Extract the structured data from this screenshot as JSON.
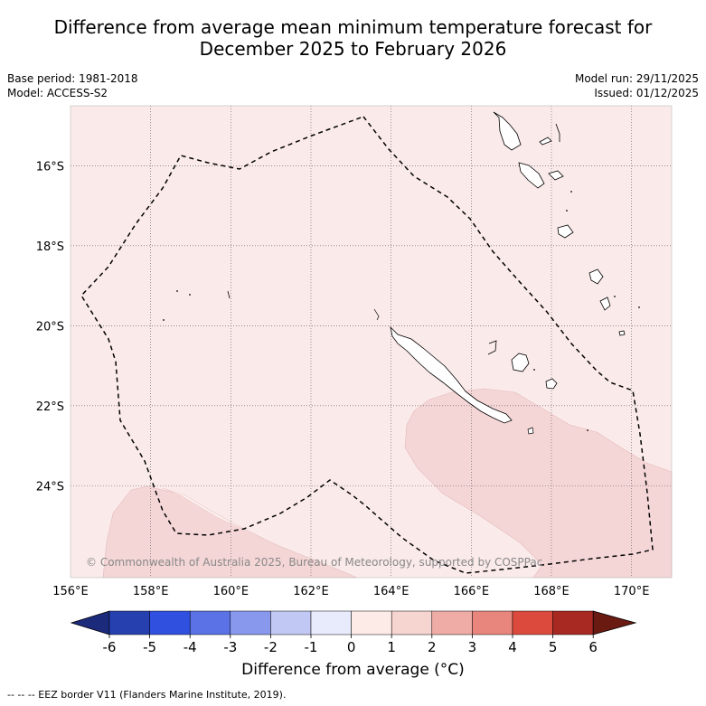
{
  "header": {
    "title_line1": "Difference from average mean minimum temperature forecast for",
    "title_line2": "December 2025 to February 2026",
    "base_period": "Base period: 1981-2018",
    "model": "Model: ACCESS-S2",
    "model_run": "Model run: 29/11/2025",
    "issued": "Issued: 01/12/2025"
  },
  "map": {
    "lon_ticks": [
      "156°E",
      "158°E",
      "160°E",
      "162°E",
      "164°E",
      "166°E",
      "168°E",
      "170°E"
    ],
    "lat_ticks": [
      "16°S",
      "18°S",
      "20°S",
      "22°S",
      "24°S"
    ],
    "lon_range": [
      156,
      171
    ],
    "lat_range": [
      -14.5,
      -26.3
    ],
    "copyright": "© Commonwealth of Australia 2025, Bureau of Meteorology, supported by COSPPac",
    "colors": {
      "background_anomaly": "#fbeaea",
      "warm_anomaly": "#f5d6d6",
      "near_zero": "#fdf1ef",
      "border": "#000000"
    }
  },
  "colorbar": {
    "tick_labels": [
      "-6",
      "-5",
      "-4",
      "-3",
      "-2",
      "-1",
      "0",
      "1",
      "2",
      "3",
      "4",
      "5",
      "6"
    ],
    "colors": [
      "#1c2a7c",
      "#2640b0",
      "#3050e0",
      "#5a72e6",
      "#8898ec",
      "#c2c8f4",
      "#e8ebfb",
      "#fdebe7",
      "#f6d4d0",
      "#efaca6",
      "#e8857c",
      "#dc4a3e",
      "#a82822",
      "#6b1a12"
    ],
    "label": "Difference from average (°C)"
  },
  "footnote": "-- -- -- EEZ border V11 (Flanders Marine Institute, 2019)."
}
